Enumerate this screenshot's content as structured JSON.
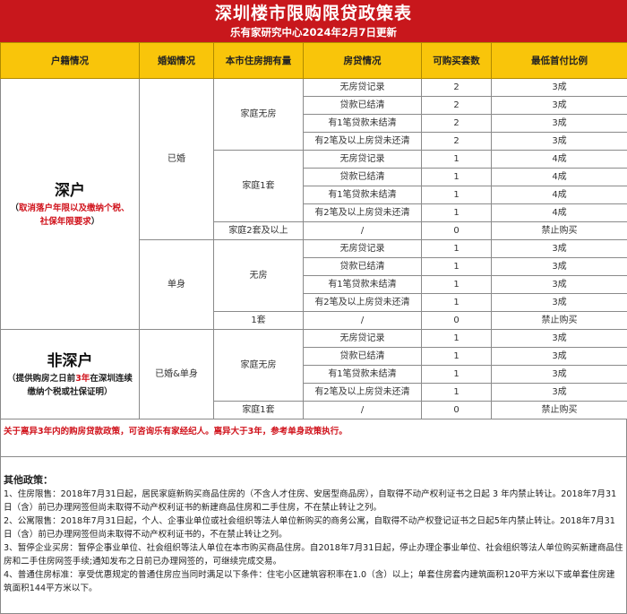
{
  "header": {
    "title": "深圳楼市限购限贷政策表",
    "subtitle": "乐有家研究中心2024年2月7日更新"
  },
  "columns": [
    "户籍情况",
    "婚姻情况",
    "本市住房拥有量",
    "房贷情况",
    "可购买套数",
    "最低首付比例"
  ],
  "groups": [
    {
      "hukou": "深户",
      "note": [
        {
          "text": "（",
          "red": false
        },
        {
          "text": "取消落户年限以及缴纳个税、社保年限要求",
          "red": true
        },
        {
          "text": "）",
          "red": false
        }
      ],
      "marital": [
        {
          "label": "已婚",
          "holdings": [
            {
              "label": "家庭无房",
              "rows": [
                [
                  "无房贷记录",
                  "2",
                  "3成"
                ],
                [
                  "贷款已结清",
                  "2",
                  "3成"
                ],
                [
                  "有1笔贷款未结清",
                  "2",
                  "3成"
                ],
                [
                  "有2笔及以上房贷未还清",
                  "2",
                  "3成"
                ]
              ]
            },
            {
              "label": "家庭1套",
              "rows": [
                [
                  "无房贷记录",
                  "1",
                  "4成"
                ],
                [
                  "贷款已结清",
                  "1",
                  "4成"
                ],
                [
                  "有1笔贷款未结清",
                  "1",
                  "4成"
                ],
                [
                  "有2笔及以上房贷未还清",
                  "1",
                  "4成"
                ]
              ]
            },
            {
              "label": "家庭2套及以上",
              "rows": [
                [
                  "/",
                  "0",
                  "禁止购买"
                ]
              ]
            }
          ]
        },
        {
          "label": "单身",
          "holdings": [
            {
              "label": "无房",
              "rows": [
                [
                  "无房贷记录",
                  "1",
                  "3成"
                ],
                [
                  "贷款已结清",
                  "1",
                  "3成"
                ],
                [
                  "有1笔贷款未结清",
                  "1",
                  "3成"
                ],
                [
                  "有2笔及以上房贷未还清",
                  "1",
                  "3成"
                ]
              ]
            },
            {
              "label": "1套",
              "rows": [
                [
                  "/",
                  "0",
                  "禁止购买"
                ]
              ]
            }
          ]
        }
      ]
    },
    {
      "hukou": "非深户",
      "note": [
        {
          "text": "（提供购房之日前",
          "red": false
        },
        {
          "text": "3年",
          "red": true
        },
        {
          "text": "在深圳连续缴纳个税或社保证明）",
          "red": false
        }
      ],
      "marital": [
        {
          "label": "已婚&单身",
          "holdings": [
            {
              "label": "家庭无房",
              "rows": [
                [
                  "无房贷记录",
                  "1",
                  "3成"
                ],
                [
                  "贷款已结清",
                  "1",
                  "3成"
                ],
                [
                  "有1笔贷款未结清",
                  "1",
                  "3成"
                ],
                [
                  "有2笔及以上房贷未还清",
                  "1",
                  "3成"
                ]
              ]
            },
            {
              "label": "家庭1套",
              "rows": [
                [
                  "/",
                  "0",
                  "禁止购买"
                ]
              ]
            }
          ]
        }
      ]
    }
  ],
  "warning": "关于离异3年内的购房贷款政策，可咨询乐有家经纪人。离异大于3年，参考单身政策执行。",
  "other": {
    "title": "其他政策：",
    "items": [
      "1、住房限售：2018年7月31日起，居民家庭新购买商品住房的（不含人才住房、安居型商品房），自取得不动产权利证书之日起 3 年内禁止转让。2018年7月31日（含）前已办理网签但尚未取得不动产权利证书的新建商品住房和二手住房，不在禁止转让之列。",
      "2、公寓限售：2018年7月31日起，个人、企事业单位或社会组织等法人单位新购买的商务公寓，自取得不动产权登记证书之日起5年内禁止转让。2018年7月31日（含）前已办理网签但尚未取得不动产权利证书的，不在禁止转让之列。",
      "3、暂停企业买房：暂停企事业单位、社会组织等法人单位在本市购买商品住房。自2018年7月31日起，停止办理企事业单位、社会组织等法人单位购买新建商品住房和二手住房网签手续;通知发布之日前已办理网签的，可继续完成交易。",
      "4、普通住房标准：享受优惠规定的普通住房应当同时满足以下条件：住宅小区建筑容积率在1.0（含）以上；单套住房套内建筑面积120平方米以下或单套住房建筑面积144平方米以下。"
    ]
  },
  "colors": {
    "banner": "#c8171c",
    "header_bg": "#f9c50a",
    "accent_red": "#d0121b"
  }
}
